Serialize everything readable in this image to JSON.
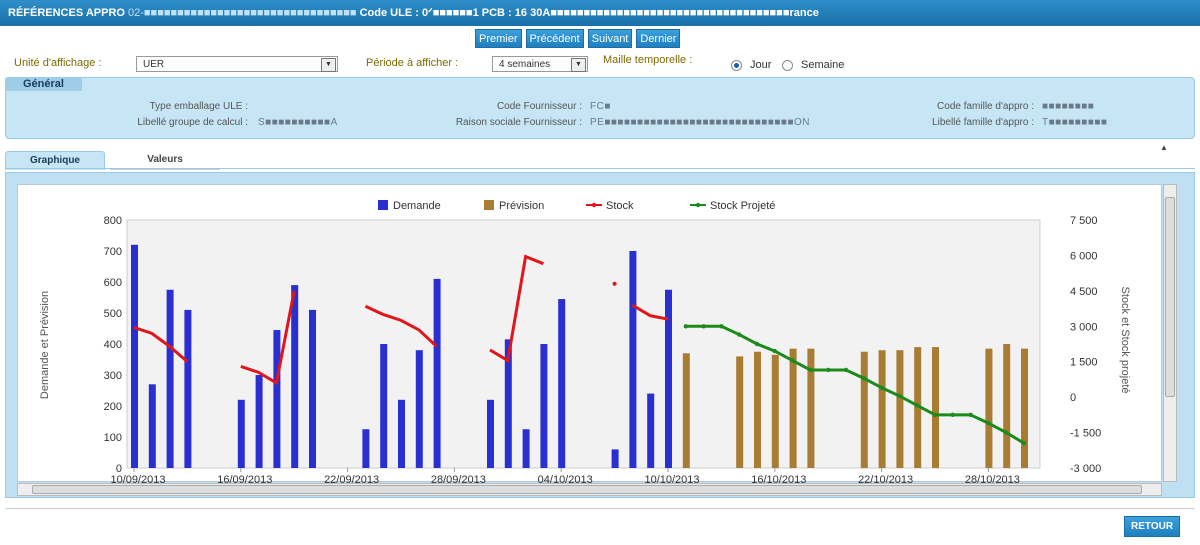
{
  "header": {
    "title_start": "RÉFÉRENCES APPRO",
    "redacted_1": "02-■■■■■■■■■■■■■■■■■■■■■■■■■■■■■■■■",
    "code_ule_label": "Code ULE :",
    "code_ule_value": "0ᐟ■■■■■■1",
    "pcb_label": "PCB :",
    "pcb_value": "16",
    "tail": "30A■■■■■■■■■■■■■■■■■■■■■■■■■■■■■■■■■■■■rance"
  },
  "nav": {
    "first": "Premier",
    "prev": "Précédent",
    "next": "Suivant",
    "last": "Dernier"
  },
  "controls": {
    "unite_label": "Unité d'affichage :",
    "unite_value": "UER",
    "periode_label": "Période à afficher :",
    "periode_value": "4 semaines",
    "maille_label": "Maille temporelle :",
    "radio_jour": "Jour",
    "radio_semaine": "Semaine"
  },
  "general": {
    "tab_label": "Général",
    "type_emballage_label": "Type emballage ULE :",
    "type_emballage_value": "",
    "libelle_groupe_label": "Libellé groupe de calcul :",
    "libelle_groupe_value": "S■■■■■■■■■■A",
    "code_fournisseur_label": "Code Fournisseur :",
    "code_fournisseur_value": "FC■",
    "raison_sociale_label": "Raison sociale Fournisseur :",
    "raison_sociale_value": "PE■■■■■■■■■■■■■■■■■■■■■■■■■■■■■ON",
    "code_famille_label": "Code famille d'appro :",
    "code_famille_value": "■■■■■■■■",
    "libelle_famille_label": "Libellé famille d'appro :",
    "libelle_famille_value": "T■■■■■■■■■"
  },
  "tabs": {
    "graphique": "Graphique",
    "valeurs": "Valeurs"
  },
  "footer": {
    "retour": "RETOUR",
    "collapse": "▲"
  },
  "colors": {
    "demande": "#2a2fd1",
    "prevision": "#a97c34",
    "stock": "#e0161c",
    "stock_projete": "#1d8a1d",
    "accent": "#1f7fbf"
  },
  "chart_data": {
    "type": "bar",
    "legend": [
      "Demande",
      "Prévision",
      "Stock",
      "Stock Projeté"
    ],
    "ylabel_left": "Demande et Prévision",
    "ylabel_right": "Stock et Stock projeté",
    "ylim_left": [
      0,
      800
    ],
    "ylim_right": [
      -3000,
      7500
    ],
    "left_ticks": [
      "0",
      "100",
      "200",
      "300",
      "400",
      "500",
      "600",
      "700",
      "800"
    ],
    "right_ticks": [
      "-3 000",
      "-1 500",
      "0",
      "1 500",
      "3 000",
      "4 500",
      "6 000",
      "7 500"
    ],
    "x_ticks": [
      "10/09/2013",
      "16/09/2013",
      "22/09/2013",
      "28/09/2013",
      "04/10/2013",
      "10/10/2013",
      "16/10/2013",
      "22/10/2013",
      "28/10/2013"
    ],
    "x_start": "2013-09-10",
    "demande": [
      {
        "day": 0,
        "value": 720
      },
      {
        "day": 1,
        "value": 270
      },
      {
        "day": 2,
        "value": 575
      },
      {
        "day": 3,
        "value": 510
      },
      {
        "day": 6,
        "value": 220
      },
      {
        "day": 7,
        "value": 300
      },
      {
        "day": 8,
        "value": 445
      },
      {
        "day": 9,
        "value": 590
      },
      {
        "day": 10,
        "value": 510
      },
      {
        "day": 13,
        "value": 125
      },
      {
        "day": 14,
        "value": 400
      },
      {
        "day": 15,
        "value": 220
      },
      {
        "day": 16,
        "value": 380
      },
      {
        "day": 17,
        "value": 610
      },
      {
        "day": 20,
        "value": 220
      },
      {
        "day": 21,
        "value": 415
      },
      {
        "day": 22,
        "value": 125
      },
      {
        "day": 23,
        "value": 400
      },
      {
        "day": 24,
        "value": 545
      },
      {
        "day": 27,
        "value": 60
      },
      {
        "day": 28,
        "value": 700
      },
      {
        "day": 29,
        "value": 240
      },
      {
        "day": 30,
        "value": 575
      }
    ],
    "prevision": [
      {
        "day": 31,
        "value": 370
      },
      {
        "day": 34,
        "value": 360
      },
      {
        "day": 35,
        "value": 375
      },
      {
        "day": 36,
        "value": 365
      },
      {
        "day": 37,
        "value": 385
      },
      {
        "day": 38,
        "value": 385
      },
      {
        "day": 41,
        "value": 375
      },
      {
        "day": 42,
        "value": 380
      },
      {
        "day": 43,
        "value": 380
      },
      {
        "day": 44,
        "value": 390
      },
      {
        "day": 45,
        "value": 390
      },
      {
        "day": 48,
        "value": 385
      },
      {
        "day": 49,
        "value": 400
      },
      {
        "day": 50,
        "value": 385
      }
    ],
    "stock_segments": [
      [
        {
          "day": 0,
          "value": 2950
        },
        {
          "day": 1,
          "value": 2700
        },
        {
          "day": 2,
          "value": 2150
        },
        {
          "day": 3,
          "value": 1500
        }
      ],
      [
        {
          "day": 6,
          "value": 1300
        },
        {
          "day": 7,
          "value": 1050
        },
        {
          "day": 8,
          "value": 600
        },
        {
          "day": 9,
          "value": 4500
        }
      ],
      [
        {
          "day": 13,
          "value": 3850
        },
        {
          "day": 14,
          "value": 3500
        },
        {
          "day": 15,
          "value": 3250
        },
        {
          "day": 16,
          "value": 2850
        },
        {
          "day": 17,
          "value": 2150
        }
      ],
      [
        {
          "day": 20,
          "value": 2000
        },
        {
          "day": 21,
          "value": 1550
        },
        {
          "day": 22,
          "value": 5950
        },
        {
          "day": 23,
          "value": 5650
        }
      ],
      [
        {
          "day": 27,
          "value": 4800
        }
      ],
      [
        {
          "day": 28,
          "value": 3900
        },
        {
          "day": 29,
          "value": 3450
        },
        {
          "day": 30,
          "value": 3300
        }
      ]
    ],
    "stock_projete": [
      {
        "day": 31,
        "value": 3000
      },
      {
        "day": 32,
        "value": 3000
      },
      {
        "day": 33,
        "value": 3000
      },
      {
        "day": 34,
        "value": 2650
      },
      {
        "day": 35,
        "value": 2250
      },
      {
        "day": 36,
        "value": 1950
      },
      {
        "day": 37,
        "value": 1550
      },
      {
        "day": 38,
        "value": 1150
      },
      {
        "day": 39,
        "value": 1150
      },
      {
        "day": 40,
        "value": 1150
      },
      {
        "day": 41,
        "value": 800
      },
      {
        "day": 42,
        "value": 400
      },
      {
        "day": 43,
        "value": 50
      },
      {
        "day": 44,
        "value": -350
      },
      {
        "day": 45,
        "value": -750
      },
      {
        "day": 46,
        "value": -750
      },
      {
        "day": 47,
        "value": -750
      },
      {
        "day": 48,
        "value": -1100
      },
      {
        "day": 49,
        "value": -1500
      },
      {
        "day": 50,
        "value": -1950
      }
    ],
    "grid": false,
    "legend_position": "top"
  }
}
